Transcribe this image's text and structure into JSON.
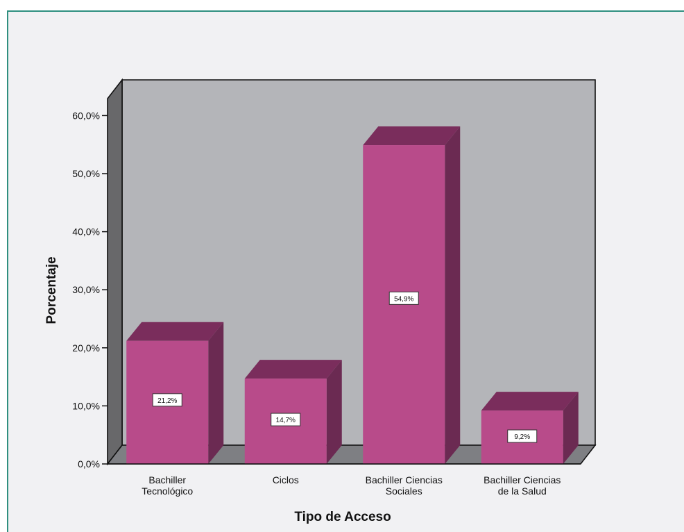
{
  "chart_data": {
    "type": "bar",
    "title": "",
    "xlabel": "Tipo de Acceso",
    "ylabel": "Porcentaje",
    "ylim": [
      0,
      60
    ],
    "yticks": [
      "0,0%",
      "10,0%",
      "20,0%",
      "30,0%",
      "40,0%",
      "50,0%",
      "60,0%"
    ],
    "categories": [
      [
        "Bachiller",
        "Tecnológico"
      ],
      [
        "Ciclos"
      ],
      [
        "Bachiller Ciencias",
        "Sociales"
      ],
      [
        "Bachiller Ciencias",
        "de la Salud"
      ]
    ],
    "values": [
      21.2,
      14.7,
      54.9,
      9.2
    ],
    "data_labels": [
      "21,2%",
      "14,7%",
      "54,9%",
      "9,2%"
    ],
    "grid": false,
    "legend": "none",
    "style": "3d",
    "colors": {
      "bar_front": "#b84b8a",
      "bar_side": "#6b2a52",
      "bar_top": "#7a2d5c",
      "back_wall": "#b4b5b9",
      "side_wall": "#68686a",
      "floor": "#7e7f83",
      "outline": "#111111"
    }
  }
}
